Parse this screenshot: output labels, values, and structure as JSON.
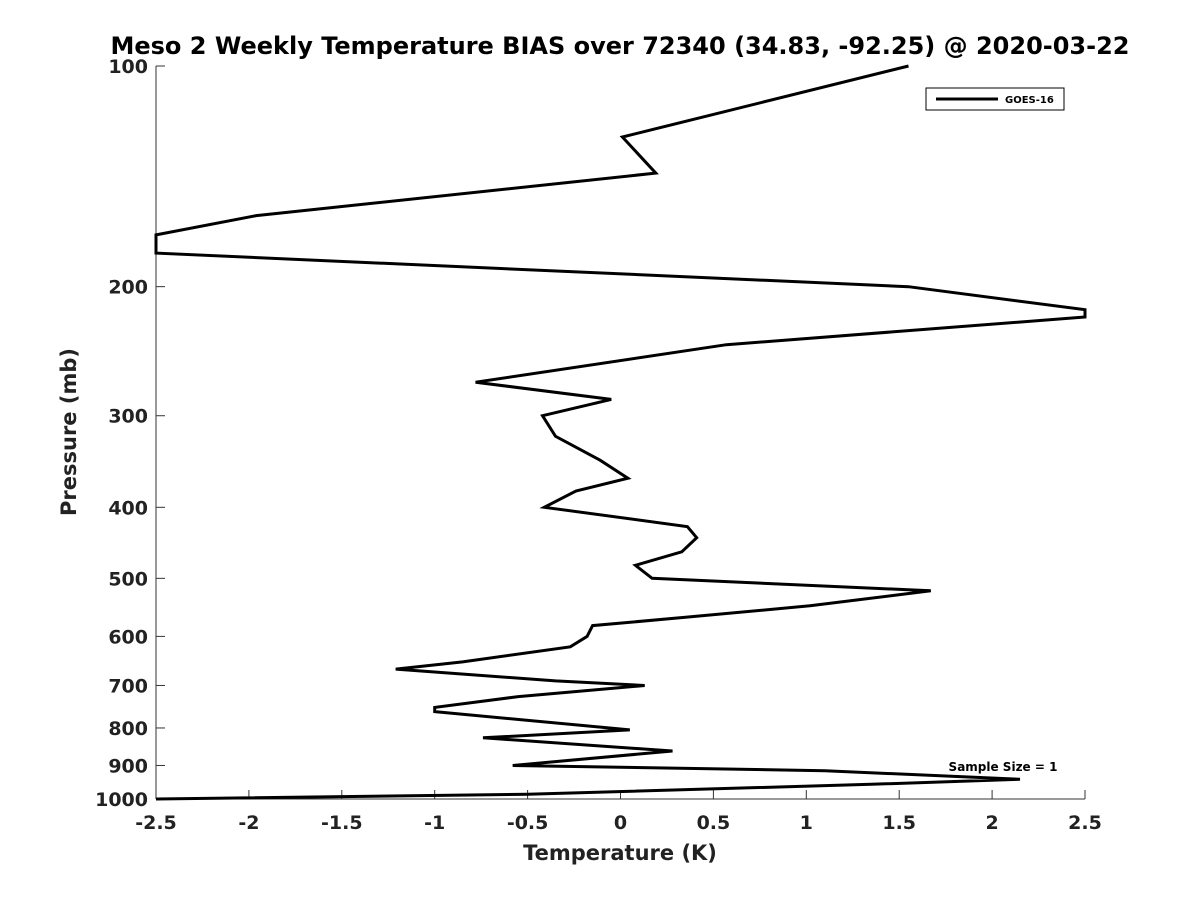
{
  "chart_data": {
    "type": "line",
    "title": "Meso 2 Weekly Temperature BIAS over 72340 (34.83, -92.25) @ 2020-03-22",
    "xlabel": "Temperature (K)",
    "ylabel": "Pressure (mb)",
    "xlim": [
      -2.5,
      2.5
    ],
    "ylim": [
      100,
      1000
    ],
    "yscale": "log",
    "y_reversed": true,
    "grid": false,
    "legend_position": "top-right",
    "x_ticks": [
      "-2.5",
      "-2",
      "-1.5",
      "-1",
      "-0.5",
      "0",
      "0.5",
      "1",
      "1.5",
      "2",
      "2.5"
    ],
    "y_ticks": [
      "100",
      "200",
      "300",
      "400",
      "500",
      "600",
      "700",
      "800",
      "900",
      "1000"
    ],
    "annotation": "Sample Size = 1",
    "series": [
      {
        "name": "GOES-16",
        "color": "#000000",
        "points": [
          {
            "x": 1.55,
            "y": 100
          },
          {
            "x": 0.01,
            "y": 125
          },
          {
            "x": 0.19,
            "y": 140
          },
          {
            "x": -1.96,
            "y": 160
          },
          {
            "x": -2.5,
            "y": 170
          },
          {
            "x": -2.5,
            "y": 180
          },
          {
            "x": 1.55,
            "y": 200
          },
          {
            "x": 2.5,
            "y": 215
          },
          {
            "x": 2.5,
            "y": 220
          },
          {
            "x": 0.57,
            "y": 240
          },
          {
            "x": -0.78,
            "y": 270
          },
          {
            "x": -0.05,
            "y": 285
          },
          {
            "x": -0.42,
            "y": 300
          },
          {
            "x": -0.35,
            "y": 320
          },
          {
            "x": -0.11,
            "y": 345
          },
          {
            "x": 0.04,
            "y": 365
          },
          {
            "x": -0.24,
            "y": 380
          },
          {
            "x": -0.41,
            "y": 400
          },
          {
            "x": 0.36,
            "y": 425
          },
          {
            "x": 0.41,
            "y": 440
          },
          {
            "x": 0.33,
            "y": 460
          },
          {
            "x": 0.08,
            "y": 480
          },
          {
            "x": 0.17,
            "y": 500
          },
          {
            "x": 1.67,
            "y": 520
          },
          {
            "x": 1.02,
            "y": 545
          },
          {
            "x": 0.35,
            "y": 565
          },
          {
            "x": -0.15,
            "y": 580
          },
          {
            "x": -0.18,
            "y": 600
          },
          {
            "x": -0.27,
            "y": 620
          },
          {
            "x": -0.85,
            "y": 650
          },
          {
            "x": -1.21,
            "y": 665
          },
          {
            "x": -0.35,
            "y": 690
          },
          {
            "x": 0.13,
            "y": 700
          },
          {
            "x": -0.55,
            "y": 725
          },
          {
            "x": -1.0,
            "y": 750
          },
          {
            "x": -1.0,
            "y": 760
          },
          {
            "x": 0.05,
            "y": 805
          },
          {
            "x": -0.74,
            "y": 825
          },
          {
            "x": 0.28,
            "y": 860
          },
          {
            "x": -0.58,
            "y": 900
          },
          {
            "x": 1.1,
            "y": 915
          },
          {
            "x": 2.15,
            "y": 940
          },
          {
            "x": 1.35,
            "y": 955
          },
          {
            "x": -0.5,
            "y": 985
          },
          {
            "x": -2.5,
            "y": 1000
          }
        ]
      }
    ]
  }
}
